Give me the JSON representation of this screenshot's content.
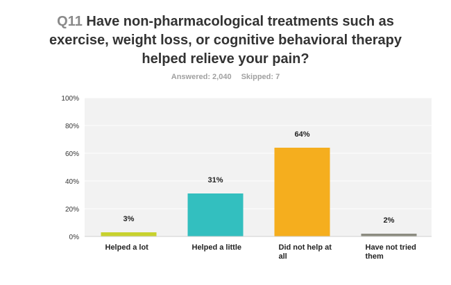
{
  "survey": {
    "question_number": "Q11",
    "question_text": "Have non-pharmacological treatments such as exercise, weight loss, or cognitive behavioral therapy helped relieve your pain?",
    "answered": "Answered: 2,040",
    "skipped": "Skipped: 7"
  },
  "chart_data": {
    "type": "bar",
    "categories": [
      "Helped a lot",
      "Helped a little",
      "Did not help at all",
      "Have not tried them"
    ],
    "values": [
      3,
      31,
      64,
      2
    ],
    "data_labels": [
      "3%",
      "31%",
      "64%",
      "2%"
    ],
    "colors": [
      "#c8d22e",
      "#33bfbf",
      "#f5ae1e",
      "#8c8c80"
    ],
    "ylim": [
      0,
      100
    ],
    "yticks": [
      "0%",
      "20%",
      "40%",
      "60%",
      "80%",
      "100%"
    ],
    "grid": true,
    "plot_background": "#f2f2f2"
  }
}
